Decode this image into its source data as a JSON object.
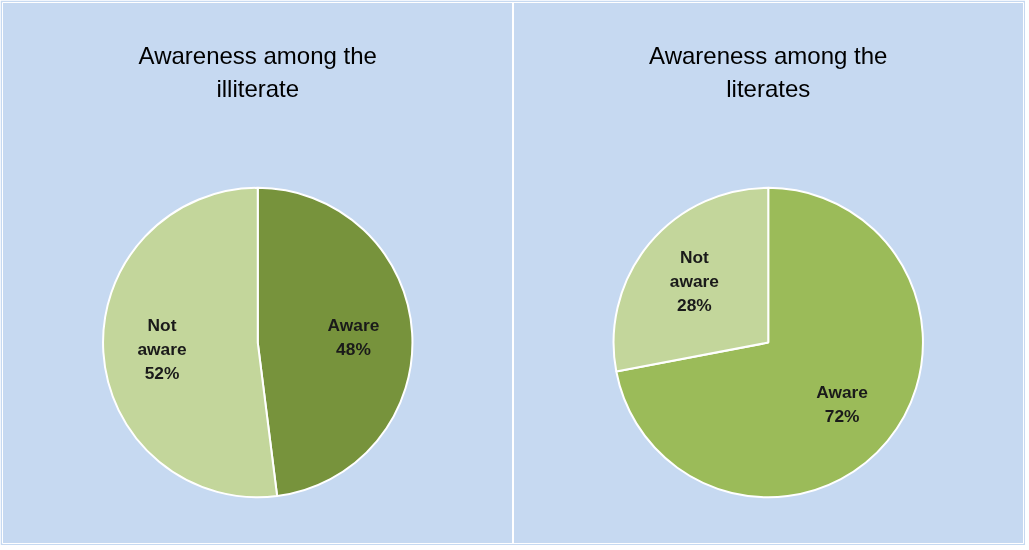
{
  "chart_data": [
    {
      "type": "pie",
      "title": "Awareness among the illiterate",
      "categories": [
        "Aware",
        "Not aware"
      ],
      "values": [
        48,
        52
      ],
      "colors": [
        "#77933c",
        "#c3d69b"
      ],
      "value_labels": [
        "48%",
        "52%"
      ]
    },
    {
      "type": "pie",
      "title": "Awareness among the literates",
      "categories": [
        "Aware",
        "Not aware"
      ],
      "values": [
        72,
        28
      ],
      "colors": [
        "#9bbb59",
        "#c3d69b"
      ],
      "value_labels": [
        "72%",
        "28%"
      ]
    }
  ]
}
